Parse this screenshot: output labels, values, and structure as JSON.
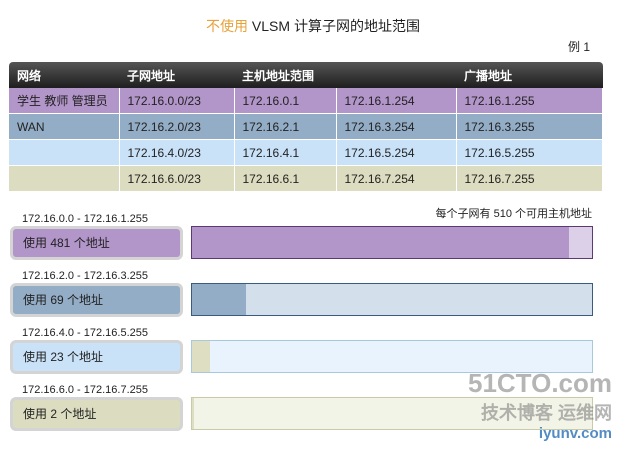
{
  "title": {
    "highlight": "不使用",
    "rest": " VLSM 计算子网的地址范围"
  },
  "example": "例 1",
  "table": {
    "headers": [
      "网络",
      "子网地址",
      "主机地址范围",
      "",
      "广播地址"
    ],
    "rows": [
      {
        "cells": [
          "学生 教师 管理员",
          "172.16.0.0/23",
          "172.16.0.1",
          "172.16.1.254",
          "172.16.1.255"
        ],
        "color": "#b295c9"
      },
      {
        "cells": [
          "WAN",
          "172.16.2.0/23",
          "172.16.2.1",
          "172.16.3.254",
          "172.16.3.255"
        ],
        "color": "#93adc6"
      },
      {
        "cells": [
          "",
          "172.16.4.0/23",
          "172.16.4.1",
          "172.16.5.254",
          "172.16.5.255"
        ],
        "color": "#c9e2f8"
      },
      {
        "cells": [
          "",
          "172.16.6.0/23",
          "172.16.6.1",
          "172.16.7.254",
          "172.16.7.255"
        ],
        "color": "#dcdcc0"
      }
    ]
  },
  "note": "每个子网有 510 个可用主机地址",
  "usage": [
    {
      "range": "172.16.0.0  - 172.16.1.255",
      "label": "使用 481 个地址",
      "used": 481,
      "total": 510,
      "pill": "#b295c9",
      "fill": "#b295c9",
      "bg": "#dcd0e8",
      "border": "#5a3a70"
    },
    {
      "range": "172.16.2.0 - 172.16.3.255",
      "label": "使用 69 个地址",
      "used": 69,
      "total": 510,
      "pill": "#93adc6",
      "fill": "#93adc6",
      "bg": "#d3dfea",
      "border": "#3a5a80"
    },
    {
      "range": "172.16.4.0 - 172.16.5.255",
      "label": "使用 23 个地址",
      "used": 23,
      "total": 510,
      "pill": "#c9e2f8",
      "fill": "#dedfc2",
      "bg": "#e8f3fd",
      "border": "#a8c8dc"
    },
    {
      "range": "172.16.6.0 - 172.16.7.255",
      "label": "使用 2 个地址",
      "used": 2,
      "total": 510,
      "pill": "#dcdcc0",
      "fill": "#dedfc2",
      "bg": "#f3f4e8",
      "border": "#c8caa8"
    }
  ],
  "watermark": {
    "a": "51CTO.com",
    "b": "技术博客",
    "c": "运维网",
    "d": "iyunv.com"
  }
}
